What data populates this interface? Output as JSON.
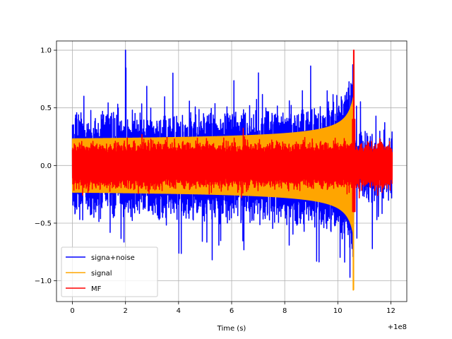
{
  "chart_data": {
    "type": "line",
    "xlabel": "Time (s)",
    "ylabel": "",
    "x_offset_label": "+1e8",
    "xlim": [
      -0.6,
      12.6
    ],
    "ylim": [
      -1.18,
      1.08
    ],
    "x_ticks": [
      0,
      2,
      4,
      6,
      8,
      10,
      12
    ],
    "x_tick_labels": [
      "0",
      "2",
      "4",
      "6",
      "8",
      "10",
      "12"
    ],
    "y_ticks": [
      -1.0,
      -0.5,
      0.0,
      0.5,
      1.0
    ],
    "y_tick_labels": [
      "−1.0",
      "−0.5",
      "0.0",
      "0.5",
      "1.0"
    ],
    "grid": true,
    "legend_position": "lower-left",
    "series": [
      {
        "name": "signa+noise",
        "color": "#0000ff",
        "x_range": [
          0,
          12.05
        ],
        "envelope_top_approx": 0.45,
        "envelope_bottom_approx": -0.45,
        "peak_max_approx": 1.0,
        "peak_min_approx": -0.95
      },
      {
        "name": "signal",
        "color": "#ffa500",
        "x_range": [
          0,
          10.6
        ],
        "amplitude_start_approx": 0.19,
        "amplitude_end_approx": 0.62,
        "peak_min_approx": -1.08
      },
      {
        "name": "MF",
        "color": "#ff0000",
        "x_range": [
          0,
          12.05
        ],
        "envelope_approx": 0.17,
        "peak_max_approx": 1.0,
        "peak_x_approx": 10.6
      }
    ]
  }
}
